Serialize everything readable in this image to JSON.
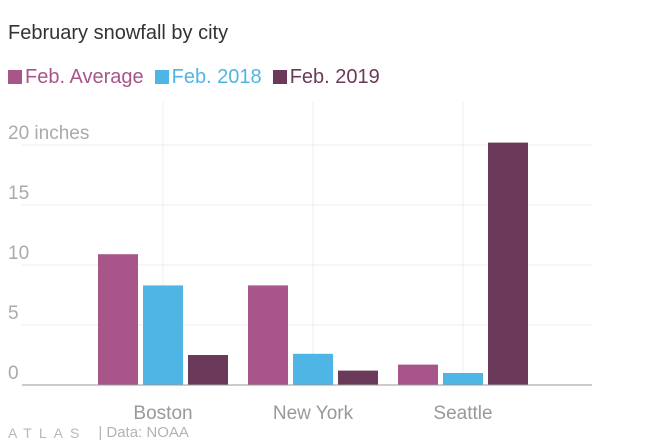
{
  "title": "February snowfall by city",
  "logo": "ATLAS",
  "source": "| Data: NOAA",
  "chart_data": {
    "type": "bar",
    "title": "February snowfall by city",
    "categories": [
      "Boston",
      "New York",
      "Seattle"
    ],
    "series": [
      {
        "name": "Feb. Average",
        "color": "#a8558a",
        "values": [
          10.9,
          8.3,
          1.7
        ]
      },
      {
        "name": "Feb. 2018",
        "color": "#4fb5e5",
        "values": [
          8.3,
          2.6,
          1.0
        ]
      },
      {
        "name": "Feb. 2019",
        "color": "#6b3a5b",
        "values": [
          2.5,
          1.2,
          20.2
        ]
      }
    ],
    "ylim": [
      0,
      20
    ],
    "yticks": [
      0,
      5,
      10,
      15,
      20
    ],
    "ytick_labels": [
      "0",
      "5",
      "10",
      "15",
      "20 inches"
    ],
    "grid": true,
    "legend_position": "top-left"
  }
}
